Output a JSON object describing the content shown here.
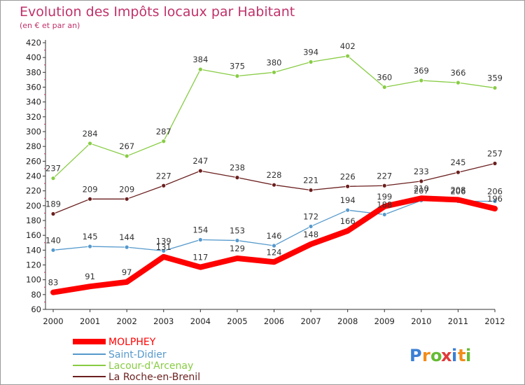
{
  "chart_data": {
    "type": "line",
    "title": "Evolution des Impôts locaux par Habitant",
    "subtitle": "(en € et par an)",
    "x": [
      "2000",
      "2001",
      "2002",
      "2003",
      "2004",
      "2005",
      "2006",
      "2007",
      "2008",
      "2009",
      "2010",
      "2011",
      "2012"
    ],
    "ylim": [
      60,
      420
    ],
    "yticks": [
      60,
      80,
      100,
      120,
      140,
      160,
      180,
      200,
      220,
      240,
      260,
      280,
      300,
      320,
      340,
      360,
      380,
      400,
      420
    ],
    "grid": false,
    "legend_position": "bottom-left",
    "series": [
      {
        "name": "MOLPHEY",
        "color": "#ff0000",
        "values": [
          83,
          91,
          97,
          131,
          117,
          129,
          124,
          148,
          166,
          199,
          210,
          208,
          196
        ]
      },
      {
        "name": "Saint-Didier",
        "color": "#5599cc",
        "values": [
          140,
          145,
          144,
          139,
          154,
          153,
          146,
          172,
          194,
          188,
          207,
          206,
          206
        ]
      },
      {
        "name": "Lacour-d'Arcenay",
        "color": "#88cc44",
        "values": [
          237,
          284,
          267,
          287,
          384,
          375,
          380,
          394,
          402,
          360,
          369,
          366,
          359
        ]
      },
      {
        "name": "La Roche-en-Brenil",
        "color": "#6b1f1f",
        "values": [
          189,
          209,
          209,
          227,
          247,
          238,
          228,
          221,
          226,
          227,
          233,
          245,
          257
        ]
      }
    ]
  },
  "logo": {
    "letters": [
      "P",
      "r",
      "o",
      "x",
      "i",
      "t",
      "i"
    ],
    "colors": [
      "#3b7fd4",
      "#f28c1a",
      "#66bb33",
      "#e03a3a",
      "#3b7fd4",
      "#f28c1a",
      "#66bb33"
    ]
  }
}
